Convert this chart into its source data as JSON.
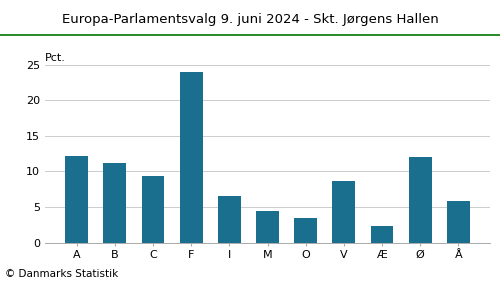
{
  "title": "Europa-Parlamentsvalg 9. juni 2024 - Skt. Jørgens Hallen",
  "categories": [
    "A",
    "B",
    "C",
    "F",
    "I",
    "M",
    "O",
    "V",
    "Æ",
    "Ø",
    "Å"
  ],
  "values": [
    12.2,
    11.2,
    9.3,
    24.0,
    6.6,
    4.4,
    3.5,
    8.7,
    2.3,
    12.0,
    5.8
  ],
  "bar_color": "#1a6e8e",
  "ylabel": "Pct.",
  "ylim": [
    0,
    27
  ],
  "yticks": [
    0,
    5,
    10,
    15,
    20,
    25
  ],
  "footer": "© Danmarks Statistik",
  "title_fontsize": 9.5,
  "tick_fontsize": 8,
  "footer_fontsize": 7.5,
  "ylabel_fontsize": 8,
  "background_color": "#ffffff",
  "grid_color": "#cccccc",
  "title_color": "#000000",
  "top_line_color": "#007700"
}
